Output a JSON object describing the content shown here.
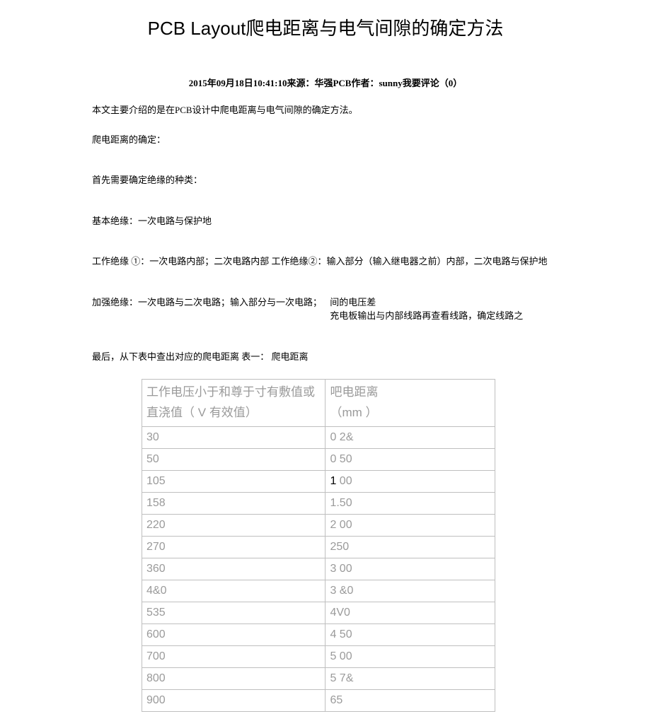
{
  "title": "PCB Layout爬电距离与电气间隙的确定方法",
  "meta": "2015年09月18日10:41:10来源：华强PCB作者：sunny我要评论（0）",
  "p1": "本文主要介绍的是在PCB设计中爬电距离与电气间隙的确定方法。",
  "p2": "爬电距离的确定：",
  "p3": "首先需要确定绝缘的种类：",
  "p4": "基本绝缘：一次电路与保护地",
  "p5": "工作绝缘 ①：一次电路内部；二次电路内部  工作绝缘②：输入部分（输入继电器之前）内部，二次电路与保护地",
  "p6a": "加强绝缘：一次电路与二次电路；输入部分与一次电路；",
  "p6b1": "间的电压差",
  "p6b2": "充电板输出与内部线路再查看线路，确定线路之",
  "p7": "最后，从下表中查出对应的爬电距离  表一： 爬电距离",
  "table": {
    "header": {
      "col1_line1": "工作电压小于和尊于寸有敷值或",
      "col1_line2_a": "直浇值（",
      "col1_line2_b": "V",
      "col1_line2_c": "有效值）",
      "col2_line1": "吧电距离",
      "col2_line2": "（mm ）"
    },
    "rows": [
      {
        "v": "30",
        "d_pre": "0 2",
        "d_dark": "",
        "d_post": "&"
      },
      {
        "v": "50",
        "d_pre": "0 50",
        "d_dark": "",
        "d_post": ""
      },
      {
        "v": "105",
        "d_pre": "",
        "d_dark": "1",
        "d_post": " 00"
      },
      {
        "v": "158",
        "d_pre": "1.50",
        "d_dark": "",
        "d_post": ""
      },
      {
        "v": "220",
        "d_pre": "2 00",
        "d_dark": "",
        "d_post": ""
      },
      {
        "v": "270",
        "d_pre": "250",
        "d_dark": "",
        "d_post": ""
      },
      {
        "v": "360",
        "d_pre": "3 00",
        "d_dark": "",
        "d_post": ""
      },
      {
        "v": "4&0",
        "d_pre": "3 &0",
        "d_dark": "",
        "d_post": ""
      },
      {
        "v": "535",
        "d_pre": "4V0",
        "d_dark": "",
        "d_post": ""
      },
      {
        "v": "600",
        "d_pre": "4 50",
        "d_dark": "",
        "d_post": ""
      },
      {
        "v": "700",
        "d_pre": "5 00",
        "d_dark": "",
        "d_post": ""
      },
      {
        "v": "800",
        "d_pre": "5 7&",
        "d_dark": "",
        "d_post": ""
      },
      {
        "v": "900",
        "d_pre": "65",
        "d_dark": "",
        "d_post": ""
      }
    ],
    "colors": {
      "border": "#bfbfbf",
      "text_gray": "#9a9a9a",
      "text_dark": "#000000",
      "background": "#ffffff"
    }
  }
}
